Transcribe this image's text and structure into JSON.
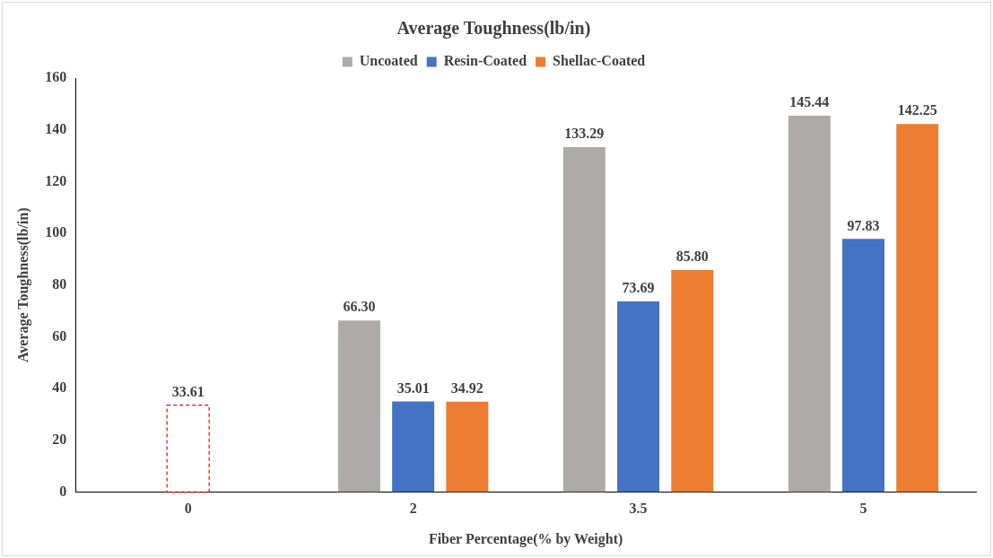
{
  "chart_data": {
    "type": "bar",
    "title": "Average Toughness(lb/in)",
    "xlabel": "Fiber Percentage(% by Weight)",
    "ylabel": "Average Toughness(lb/in)",
    "categories": [
      "0",
      "2",
      "3.5",
      "5"
    ],
    "series": [
      {
        "name": "Uncoated",
        "color": "#aeaaaa",
        "values": [
          null,
          66.3,
          133.29,
          145.44
        ],
        "value_labels": [
          null,
          "66.30",
          "133.29",
          "145.44"
        ]
      },
      {
        "name": "Resin-Coated",
        "color": "#4472c4",
        "colors": [
          "#ff0000",
          "#4472c4",
          "#4472c4",
          "#4472c4"
        ],
        "values": [
          33.61,
          35.01,
          73.69,
          97.83
        ],
        "value_labels": [
          "33.61",
          "35.01",
          "73.69",
          "97.83"
        ]
      },
      {
        "name": "Shellac-Coated",
        "color": "#ed7d31",
        "values": [
          null,
          34.92,
          85.8,
          142.25
        ],
        "value_labels": [
          null,
          "34.92",
          "85.80",
          "142.25"
        ]
      }
    ],
    "ylim": [
      0,
      160
    ],
    "yticks": [
      0,
      20,
      40,
      60,
      80,
      100,
      120,
      140,
      160
    ],
    "grid": false,
    "legend": "top"
  }
}
